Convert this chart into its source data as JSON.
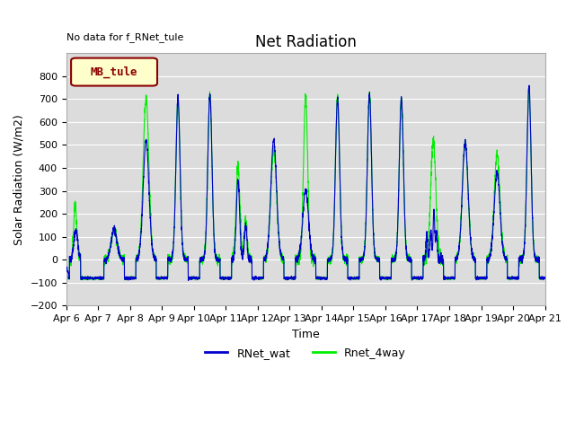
{
  "title": "Net Radiation",
  "xlabel": "Time",
  "ylabel": "Solar Radiation (W/m2)",
  "top_left_text": "No data for f_RNet_tule",
  "legend_box_text": "MB_tule",
  "ylim": [
    -200,
    900
  ],
  "yticks": [
    -200,
    -100,
    0,
    100,
    200,
    300,
    400,
    500,
    600,
    700,
    800
  ],
  "xtick_labels": [
    "Apr 6",
    "Apr 7",
    "Apr 8",
    "Apr 9",
    "Apr 10",
    "Apr 11",
    "Apr 12",
    "Apr 13",
    "Apr 14",
    "Apr 15",
    "Apr 16",
    "Apr 17",
    "Apr 18",
    "Apr 19",
    "Apr 20",
    "Apr 21"
  ],
  "line1_color": "#0000cc",
  "line2_color": "#00ee00",
  "line1_label": "RNet_wat",
  "line2_label": "Rnet_4way",
  "bg_color": "#dcdcdc",
  "legend_box_color": "#ffffcc",
  "legend_box_edge": "#8b0000",
  "title_fontsize": 12,
  "axis_fontsize": 9,
  "tick_fontsize": 8
}
